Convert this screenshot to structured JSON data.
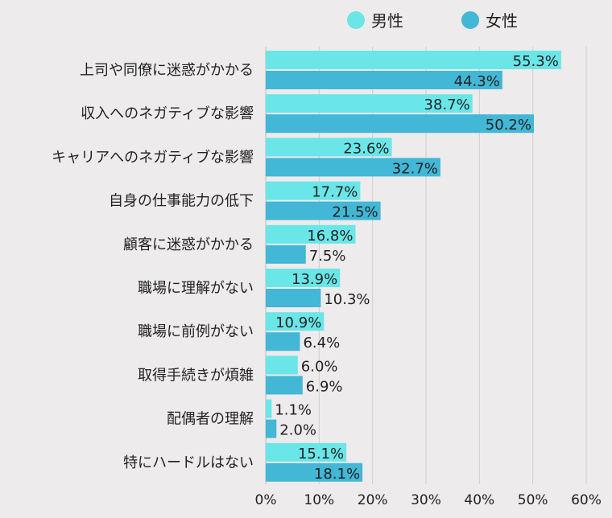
{
  "chart_data": {
    "type": "bar",
    "orientation": "horizontal",
    "title": "",
    "xlabel": "",
    "ylabel": "",
    "xlim": [
      0,
      60
    ],
    "xticks": [
      "0%",
      "10%",
      "20%",
      "30%",
      "40%",
      "50%",
      "60%"
    ],
    "grid": true,
    "legend_position": "top-right",
    "categories": [
      "上司や同僚に迷惑がかかる",
      "収入へのネガティブな影響",
      "キャリアへのネガティブな影響",
      "自身の仕事能力の低下",
      "顧客に迷惑がかかる",
      "職場に理解がない",
      "職場に前例がない",
      "取得手続きが煩雑",
      "配偶者の理解",
      "特にハードルはない"
    ],
    "series": [
      {
        "name": "男性",
        "color": "#6ae5e8",
        "values": [
          55.3,
          38.7,
          23.6,
          17.7,
          16.8,
          13.9,
          10.9,
          6.0,
          1.1,
          15.1
        ]
      },
      {
        "name": "女性",
        "color": "#42b7d6",
        "values": [
          44.3,
          50.2,
          32.7,
          21.5,
          7.5,
          10.3,
          6.4,
          6.9,
          2.0,
          18.1
        ]
      }
    ]
  }
}
